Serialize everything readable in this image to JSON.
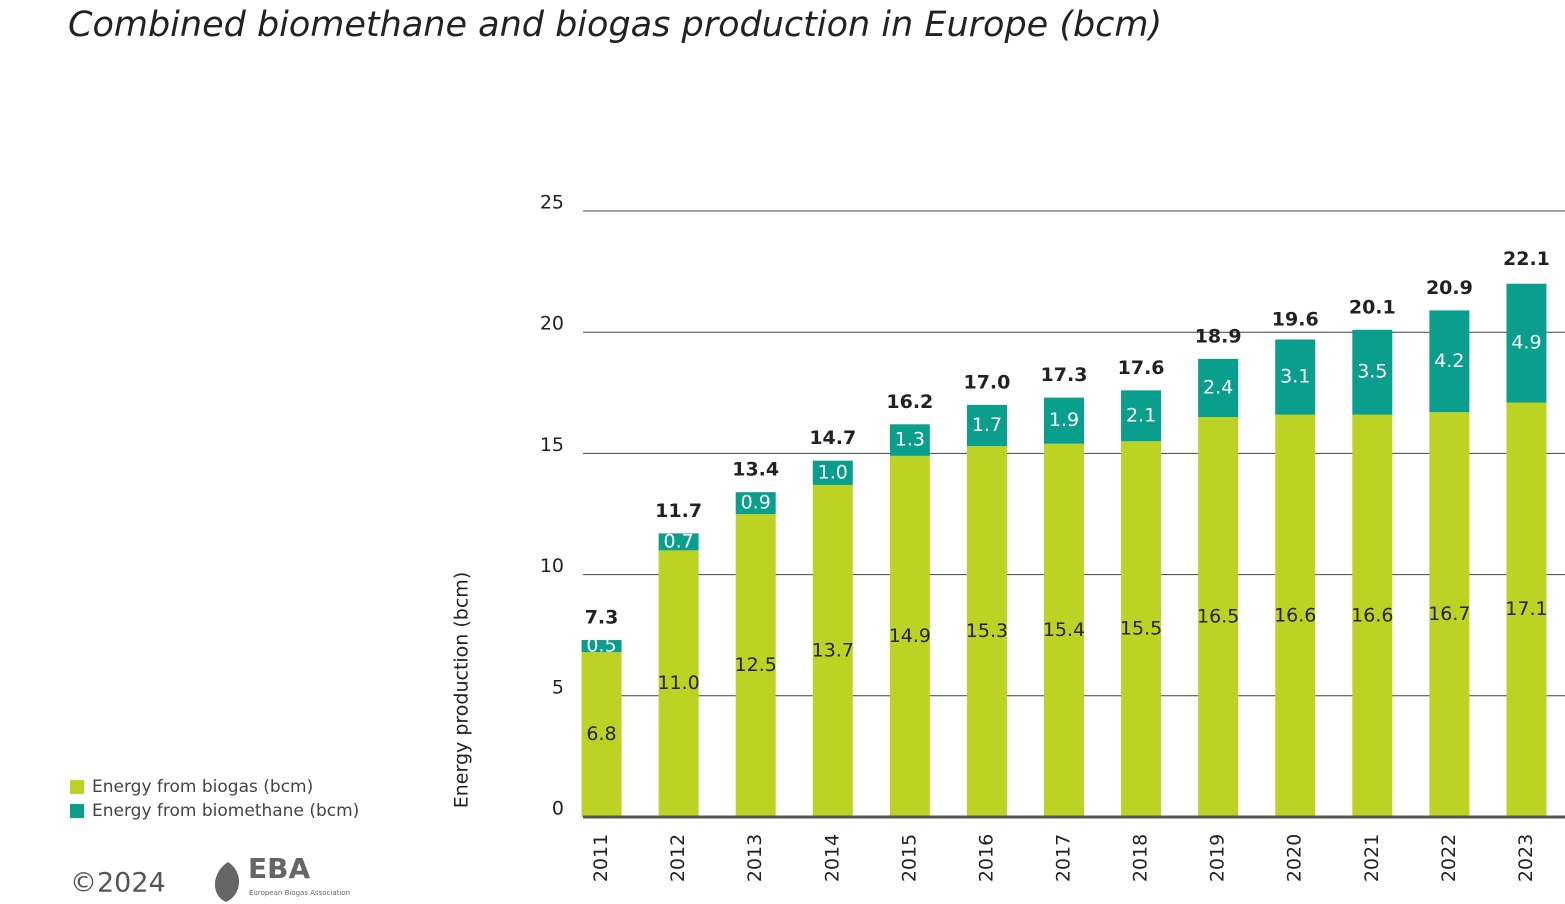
{
  "chart_data": {
    "type": "stacked_bar",
    "title": "Combined biomethane and biogas production in Europe (bcm)",
    "y_label": "Energy production (bcm)",
    "categories": [
      "2011",
      "2012",
      "2013",
      "2014",
      "2015",
      "2016",
      "2017",
      "2018",
      "2019",
      "2020",
      "2021",
      "2022",
      "2023"
    ],
    "series": [
      {
        "name": "Energy from biogas (bcm)",
        "color": "#bdd323",
        "label_color": "#222222",
        "values": [
          6.8,
          11,
          12.5,
          13.7,
          14.9,
          15.3,
          15.4,
          15.5,
          16.5,
          16.6,
          16.6,
          16.7,
          17.1
        ],
        "value_labels": [
          "6.8",
          "11.0",
          "12.5",
          "13.7",
          "14.9",
          "15.3",
          "15.4",
          "15.5",
          "16.5",
          "16.6",
          "16.6",
          "16.7",
          "17.1"
        ]
      },
      {
        "name": "Energy from biomethane (bcm)",
        "color": "#0a9e8c",
        "label_color": "#ffffff",
        "values": [
          0.5,
          0.7,
          0.9,
          1,
          1.3,
          1.7,
          1.9,
          2.1,
          2.4,
          3.1,
          3.5,
          4.2,
          4.9
        ],
        "value_labels": [
          "0.5",
          "0.7",
          "0.9",
          "1.0",
          "1.3",
          "1.7",
          "1.9",
          "2.1",
          "2.4",
          "3.1",
          "3.5",
          "4.2",
          "4.9"
        ]
      }
    ],
    "totals": [
      7.3,
      11.7,
      13.4,
      14.7,
      16.2,
      17,
      17.3,
      17.6,
      18.9,
      19.6,
      20.1,
      20.9,
      22.1
    ],
    "total_labels": [
      "7.3",
      "11.7",
      "13.4",
      "14.7",
      "16.2",
      "17.0",
      "17.3",
      "17.6",
      "18.9",
      "19.6",
      "20.1",
      "20.9",
      "22.1"
    ],
    "ylim": [
      0,
      25
    ],
    "yticks": [
      0,
      5,
      10,
      15,
      20,
      25
    ],
    "grid": true,
    "footer": "©2024",
    "logo": "EBA",
    "logo_subtitle": "European Biogas Association"
  }
}
